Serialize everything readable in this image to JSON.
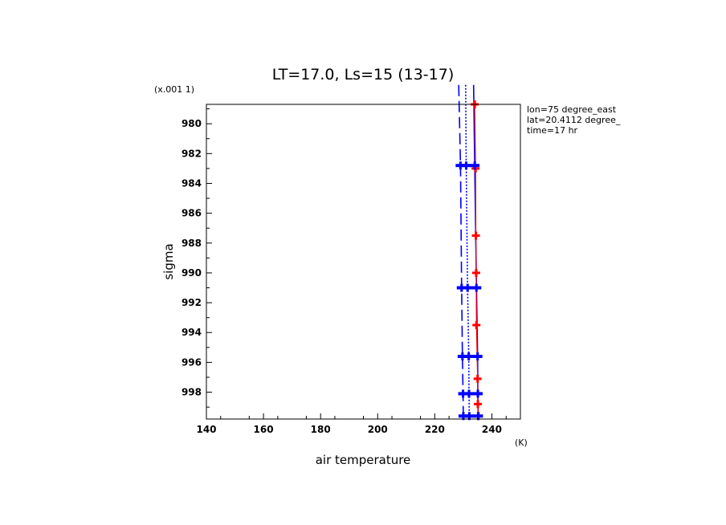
{
  "chart_data": {
    "type": "line",
    "title": "LT=17.0, Ls=15 (13-17)",
    "xlabel": "air temperature",
    "xunit": "(K)",
    "ylabel": "sigma",
    "yscale_note": "(x.001 1)",
    "xlim": [
      140,
      250
    ],
    "ylim": [
      978.7,
      999.8
    ],
    "y_inverted": true,
    "x_ticks": [
      140,
      160,
      180,
      200,
      220,
      240
    ],
    "x_tick_labels": [
      "140",
      "160",
      "180",
      "200",
      "220",
      "240"
    ],
    "y_ticks": [
      980,
      982,
      984,
      986,
      988,
      990,
      992,
      994,
      996,
      998
    ],
    "y_tick_labels": [
      "980",
      "982",
      "984",
      "986",
      "988",
      "990",
      "992",
      "994",
      "996",
      "998"
    ],
    "annotations": [
      "lon=75 degree_east",
      "lat=20.4112 degree_",
      "time=17 hr"
    ],
    "colors": {
      "blue": "#0000ff",
      "red": "#ff0000",
      "axis": "#000000"
    },
    "series": [
      {
        "style": "solid",
        "color": "#0000ff",
        "points": [
          [
            233.6,
            977.4
          ],
          [
            234.0,
            982.8
          ],
          [
            234.6,
            991.0
          ],
          [
            235.0,
            995.6
          ],
          [
            235.1,
            998.1
          ],
          [
            235.2,
            999.6
          ]
        ]
      },
      {
        "style": "dotted",
        "color": "#0000ff",
        "points": [
          [
            230.8,
            977.4
          ],
          [
            231.0,
            982.8
          ],
          [
            231.5,
            991.0
          ],
          [
            231.9,
            995.6
          ],
          [
            232.0,
            998.1
          ],
          [
            232.1,
            999.6
          ]
        ]
      },
      {
        "style": "dashed",
        "color": "#0000ff",
        "points": [
          [
            228.4,
            977.4
          ],
          [
            229.0,
            982.8
          ],
          [
            229.4,
            991.0
          ],
          [
            229.7,
            995.6
          ],
          [
            229.9,
            998.1
          ],
          [
            230.0,
            999.6
          ]
        ]
      },
      {
        "style": "solid",
        "color": "#ff0000",
        "marker": "plus",
        "points": [
          [
            234.0,
            978.7
          ],
          [
            234.3,
            983.0
          ],
          [
            234.4,
            987.5
          ],
          [
            234.5,
            990.0
          ],
          [
            234.6,
            993.5
          ],
          [
            235.0,
            997.1
          ],
          [
            235.1,
            998.8
          ],
          [
            235.3,
            999.6
          ]
        ]
      }
    ],
    "markers": [
      {
        "color": "#0000ff",
        "y": 982.8,
        "x": [
          229.0,
          231.0,
          234.0
        ]
      },
      {
        "color": "#0000ff",
        "y": 991.0,
        "x": [
          229.4,
          231.5,
          234.6
        ]
      },
      {
        "color": "#0000ff",
        "y": 995.6,
        "x": [
          229.7,
          231.9,
          235.0
        ]
      },
      {
        "color": "#0000ff",
        "y": 998.1,
        "x": [
          229.9,
          232.0,
          235.1
        ]
      },
      {
        "color": "#0000ff",
        "y": 999.6,
        "x": [
          230.0,
          232.1,
          235.2
        ]
      }
    ]
  }
}
